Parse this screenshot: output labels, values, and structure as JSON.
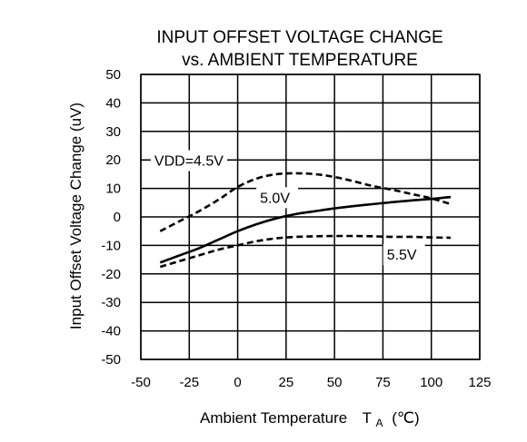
{
  "chart_data": {
    "type": "line",
    "title": "INPUT OFFSET VOLTAGE CHANGE",
    "subtitle": "vs. AMBIENT TEMPERATURE",
    "xlabel": "Ambient Temperature",
    "xlabel_symbol": "T",
    "xlabel_subscript": "A",
    "xlabel_unit": "(℃)",
    "ylabel": "Input Offset Voltage Change  (uV)",
    "xlim": [
      -50,
      125
    ],
    "ylim": [
      -50,
      50
    ],
    "xticks": [
      -50,
      -25,
      0,
      25,
      50,
      75,
      100,
      125
    ],
    "yticks": [
      -50,
      -40,
      -30,
      -20,
      -10,
      0,
      10,
      20,
      30,
      40,
      50
    ],
    "grid": true,
    "series": [
      {
        "name": "VDD=4.5V",
        "style": "dashed",
        "x": [
          -40,
          -30,
          -20,
          -10,
          0,
          10,
          20,
          30,
          40,
          50,
          60,
          70,
          80,
          90,
          100,
          110
        ],
        "y": [
          -5,
          -1.5,
          2,
          6,
          10.5,
          13.5,
          15,
          15.3,
          15,
          14,
          12.5,
          10.8,
          9.5,
          8,
          6.5,
          4.5
        ]
      },
      {
        "name": "5.0V",
        "style": "solid",
        "x": [
          -40,
          -30,
          -20,
          -10,
          0,
          10,
          20,
          30,
          40,
          50,
          60,
          70,
          80,
          90,
          100,
          110
        ],
        "y": [
          -16,
          -13.5,
          -11,
          -8,
          -5,
          -2.5,
          -0.5,
          1,
          2,
          3,
          3.8,
          4.5,
          5.2,
          5.8,
          6.3,
          7
        ]
      },
      {
        "name": "5.5V",
        "style": "dashed",
        "x": [
          -40,
          -30,
          -20,
          -10,
          0,
          10,
          20,
          30,
          40,
          50,
          60,
          70,
          80,
          90,
          100,
          110
        ],
        "y": [
          -17.5,
          -15.5,
          -13.5,
          -11.5,
          -10,
          -8.5,
          -7.5,
          -7,
          -6.8,
          -6.7,
          -6.7,
          -6.8,
          -7,
          -7,
          -7.2,
          -7.3
        ]
      }
    ],
    "annotations": [
      {
        "text": "VDD=4.5V",
        "x": -43,
        "y": 18
      },
      {
        "text": "5.0V",
        "x": 11.5,
        "y": 5
      },
      {
        "text": "5.5V",
        "x": 77,
        "y": -15
      }
    ]
  }
}
